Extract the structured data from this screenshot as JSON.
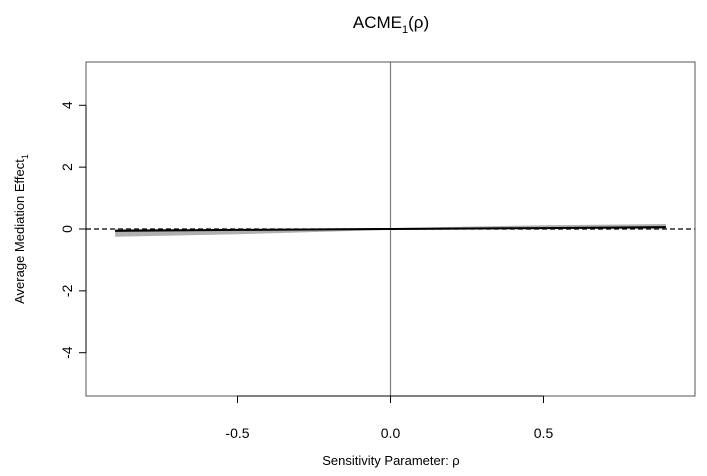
{
  "chart_data": {
    "type": "line",
    "title": {
      "base": "ACME",
      "subscript": "1",
      "suffix": "(ρ)"
    },
    "xlabel": "Sensitivity Parameter: ρ",
    "ylabel": {
      "base": "Average Mediation Effect",
      "subscript": "1"
    },
    "xlim": [
      -0.995,
      0.995
    ],
    "ylim": [
      -5.4,
      5.4
    ],
    "x_ticks": [
      -0.5,
      0.0,
      0.5
    ],
    "x_tick_labels": [
      "-0.5",
      "0.0",
      "0.5"
    ],
    "y_ticks": [
      -4,
      -2,
      0,
      2,
      4
    ],
    "y_tick_labels": [
      "-4",
      "-2",
      "0",
      "2",
      "4"
    ],
    "grid": false,
    "reference_lines": {
      "horizontal_dashed_y": 0,
      "vertical_x": 0
    },
    "series": [
      {
        "x": [
          -0.9,
          -0.5,
          0.0,
          0.5,
          0.9
        ],
        "values": [
          -0.06,
          -0.03,
          0.0,
          0.03,
          0.06
        ],
        "ci_lower": [
          -0.25,
          -0.17,
          -0.03,
          0.0,
          0.0
        ],
        "ci_upper": [
          0.0,
          0.0,
          0.03,
          0.12,
          0.16
        ]
      }
    ],
    "colors": {
      "ci_band": "#b0b0b0",
      "line": "#000000",
      "zero_line": "#7f7f7f",
      "frame": "#555555"
    }
  }
}
